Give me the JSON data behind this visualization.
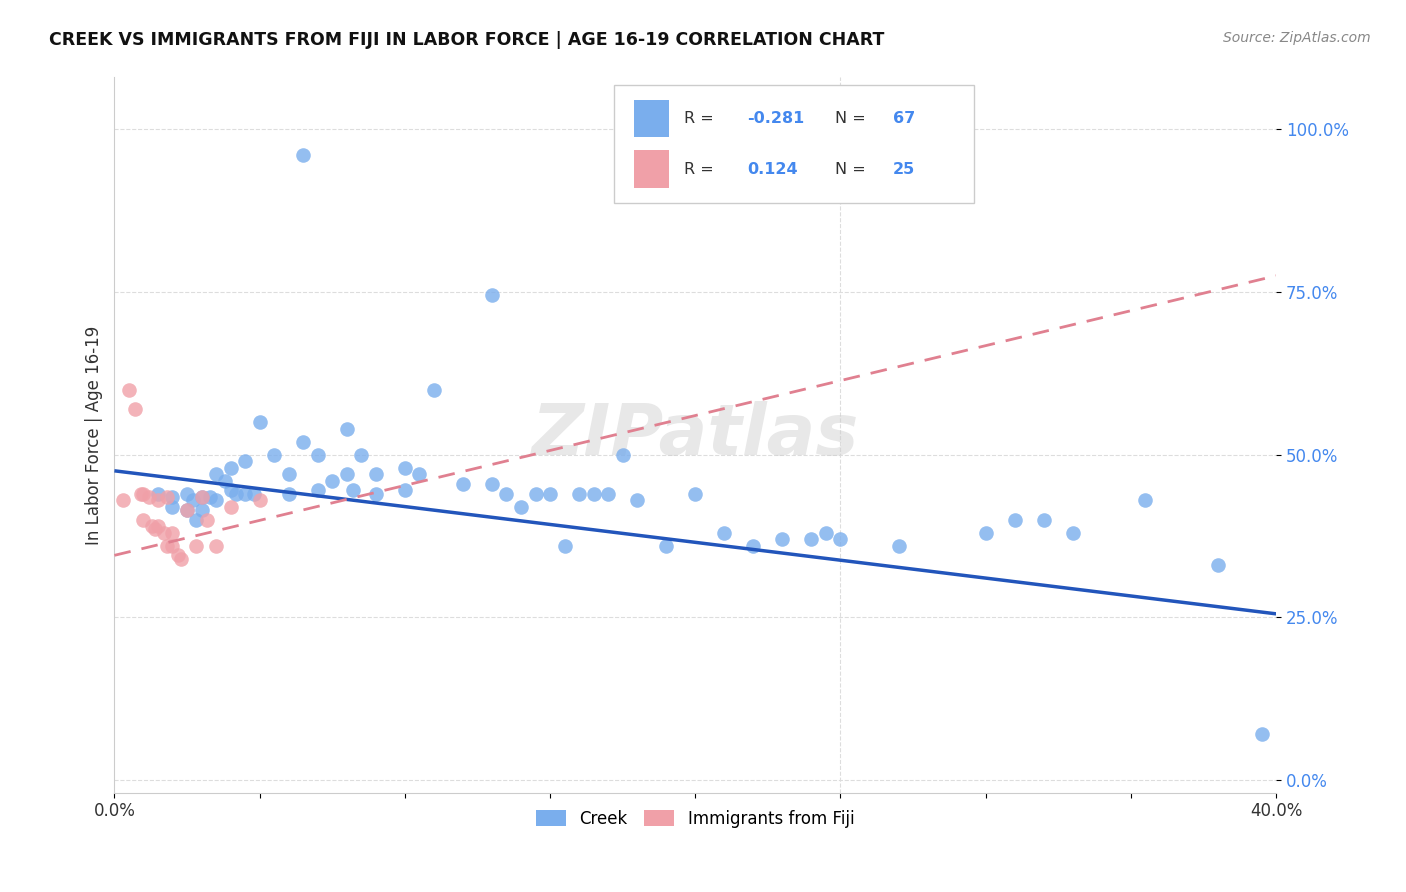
{
  "title": "CREEK VS IMMIGRANTS FROM FIJI IN LABOR FORCE | AGE 16-19 CORRELATION CHART",
  "source": "Source: ZipAtlas.com",
  "ylabel": "In Labor Force | Age 16-19",
  "xlim": [
    0.0,
    0.4
  ],
  "ylim": [
    -0.02,
    1.08
  ],
  "ytick_vals": [
    0.0,
    0.25,
    0.5,
    0.75,
    1.0
  ],
  "ytick_labels": [
    "0.0%",
    "25.0%",
    "50.0%",
    "75.0%",
    "100.0%"
  ],
  "xtick_vals": [
    0.0,
    0.05,
    0.1,
    0.15,
    0.2,
    0.25,
    0.3,
    0.35,
    0.4
  ],
  "xtick_labels": [
    "0.0%",
    "",
    "",
    "",
    "",
    "",
    "",
    "",
    "40.0%"
  ],
  "legend_creek_R": "-0.281",
  "legend_creek_N": "67",
  "legend_fiji_R": "0.124",
  "legend_fiji_N": "25",
  "creek_color": "#7aaeed",
  "fiji_color": "#f0a0a8",
  "creek_line_color": "#2255bb",
  "fiji_line_color": "#e08090",
  "watermark": "ZIPatlas",
  "creek_line_x": [
    0.0,
    0.4
  ],
  "creek_line_y": [
    0.475,
    0.255
  ],
  "fiji_line_x": [
    0.0,
    0.4
  ],
  "fiji_line_y": [
    0.345,
    0.775
  ],
  "creek_points_x": [
    0.015,
    0.02,
    0.02,
    0.025,
    0.025,
    0.027,
    0.028,
    0.03,
    0.03,
    0.033,
    0.035,
    0.035,
    0.038,
    0.04,
    0.04,
    0.042,
    0.045,
    0.045,
    0.048,
    0.05,
    0.055,
    0.06,
    0.06,
    0.065,
    0.07,
    0.07,
    0.075,
    0.08,
    0.08,
    0.082,
    0.085,
    0.09,
    0.09,
    0.1,
    0.1,
    0.105,
    0.11,
    0.12,
    0.13,
    0.135,
    0.14,
    0.145,
    0.15,
    0.155,
    0.16,
    0.165,
    0.17,
    0.175,
    0.18,
    0.19,
    0.2,
    0.21,
    0.22,
    0.23,
    0.24,
    0.245,
    0.25,
    0.27,
    0.3,
    0.31,
    0.32,
    0.33,
    0.355,
    0.38,
    0.395,
    0.065,
    0.13
  ],
  "creek_points_y": [
    0.44,
    0.435,
    0.42,
    0.44,
    0.415,
    0.43,
    0.4,
    0.435,
    0.415,
    0.435,
    0.47,
    0.43,
    0.46,
    0.48,
    0.445,
    0.44,
    0.49,
    0.44,
    0.44,
    0.55,
    0.5,
    0.47,
    0.44,
    0.52,
    0.5,
    0.445,
    0.46,
    0.54,
    0.47,
    0.445,
    0.5,
    0.47,
    0.44,
    0.48,
    0.445,
    0.47,
    0.6,
    0.455,
    0.455,
    0.44,
    0.42,
    0.44,
    0.44,
    0.36,
    0.44,
    0.44,
    0.44,
    0.5,
    0.43,
    0.36,
    0.44,
    0.38,
    0.36,
    0.37,
    0.37,
    0.38,
    0.37,
    0.36,
    0.38,
    0.4,
    0.4,
    0.38,
    0.43,
    0.33,
    0.07,
    0.96,
    0.745
  ],
  "fiji_points_x": [
    0.003,
    0.005,
    0.007,
    0.009,
    0.01,
    0.01,
    0.012,
    0.013,
    0.014,
    0.015,
    0.015,
    0.017,
    0.018,
    0.018,
    0.02,
    0.02,
    0.022,
    0.023,
    0.025,
    0.028,
    0.03,
    0.032,
    0.035,
    0.04,
    0.05
  ],
  "fiji_points_y": [
    0.43,
    0.6,
    0.57,
    0.44,
    0.44,
    0.4,
    0.435,
    0.39,
    0.385,
    0.43,
    0.39,
    0.38,
    0.435,
    0.36,
    0.38,
    0.36,
    0.345,
    0.34,
    0.415,
    0.36,
    0.435,
    0.4,
    0.36,
    0.42,
    0.43
  ]
}
